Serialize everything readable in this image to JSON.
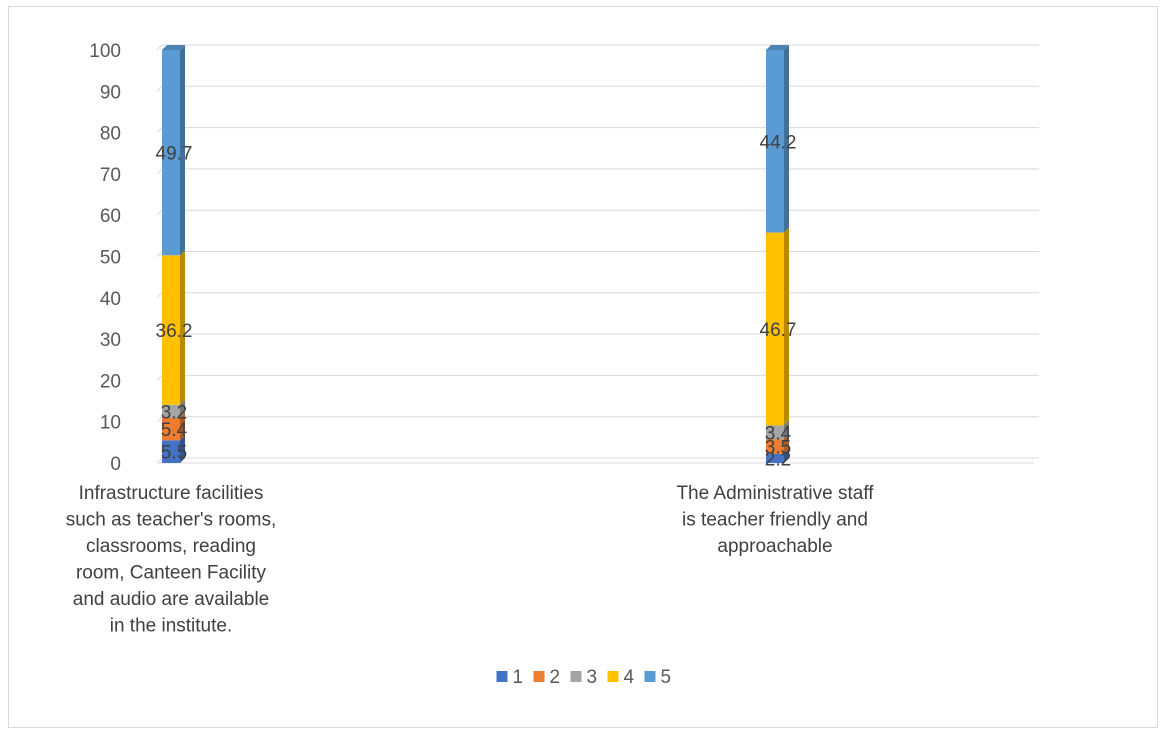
{
  "chart_data": {
    "type": "bar",
    "stacked": true,
    "three_d": true,
    "title": "",
    "xlabel": "",
    "ylabel": "",
    "ylim": [
      0,
      100
    ],
    "yticks": [
      0,
      10,
      20,
      30,
      40,
      50,
      60,
      70,
      80,
      90,
      100
    ],
    "grid": true,
    "legend_position": "bottom",
    "categories": [
      {
        "lines": [
          "Infrastructure facilities",
          "such as teacher's rooms,",
          "classrooms, reading",
          "room, Canteen Facility",
          "and audio are available",
          "in the institute."
        ]
      },
      {
        "lines": [
          "The Administrative staff",
          "is teacher friendly and",
          "approachable"
        ]
      }
    ],
    "series": [
      {
        "name": "1",
        "color": "#4472c4",
        "values": [
          5.5,
          2.2
        ]
      },
      {
        "name": "2",
        "color": "#ed7d31",
        "values": [
          5.4,
          3.5
        ]
      },
      {
        "name": "3",
        "color": "#a5a5a5",
        "values": [
          3.2,
          3.4
        ]
      },
      {
        "name": "4",
        "color": "#ffc000",
        "values": [
          36.2,
          46.7
        ]
      },
      {
        "name": "5",
        "color": "#5b9bd5",
        "values": [
          49.7,
          44.2
        ]
      }
    ]
  }
}
